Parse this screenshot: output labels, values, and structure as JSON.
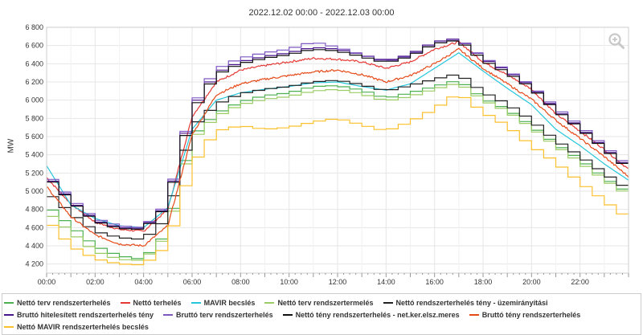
{
  "chart_data": {
    "type": "line",
    "title": "2022.12.02 00:00 - 2022.12.03 00:00",
    "ylabel": "MW",
    "xlabel": "",
    "ylim": [
      4100,
      6800
    ],
    "xlim": [
      0,
      24
    ],
    "grid": true,
    "legend_position": "bottom",
    "y_ticks": [
      {
        "value": 4200,
        "label": "4 200"
      },
      {
        "value": 4400,
        "label": "4 400"
      },
      {
        "value": 4600,
        "label": "4 600"
      },
      {
        "value": 4800,
        "label": "4 800"
      },
      {
        "value": 5000,
        "label": "5 000"
      },
      {
        "value": 5200,
        "label": "5 200"
      },
      {
        "value": 5400,
        "label": "5 400"
      },
      {
        "value": 5600,
        "label": "5 600"
      },
      {
        "value": 5800,
        "label": "5 800"
      },
      {
        "value": 6000,
        "label": "6 000"
      },
      {
        "value": 6200,
        "label": "6 200"
      },
      {
        "value": 6400,
        "label": "6 400"
      },
      {
        "value": 6600,
        "label": "6 600"
      },
      {
        "value": 6800,
        "label": "6 800"
      }
    ],
    "x_ticks": [
      {
        "value": 0,
        "label": "00:00"
      },
      {
        "value": 2,
        "label": "02:00"
      },
      {
        "value": 4,
        "label": "04:00"
      },
      {
        "value": 6,
        "label": "06:00"
      },
      {
        "value": 8,
        "label": "08:00"
      },
      {
        "value": 10,
        "label": "10:00"
      },
      {
        "value": 12,
        "label": "12:00"
      },
      {
        "value": 14,
        "label": "14:00"
      },
      {
        "value": 16,
        "label": "16:00"
      },
      {
        "value": 18,
        "label": "18:00"
      },
      {
        "value": 20,
        "label": "20:00"
      },
      {
        "value": 22,
        "label": "22:00"
      }
    ],
    "x": [
      0,
      1,
      2,
      3,
      4,
      5,
      6,
      7,
      8,
      9,
      10,
      11,
      12,
      13,
      14,
      15,
      16,
      17,
      18,
      19,
      20,
      21,
      22,
      23,
      24
    ],
    "series": [
      {
        "name": "Nettó terv rendszerterhelés",
        "color": "#4caf50",
        "style": "step",
        "values": [
          4850,
          4620,
          4400,
          4290,
          4250,
          4550,
          5600,
          5850,
          5980,
          6050,
          6080,
          6150,
          6160,
          6110,
          6020,
          6080,
          6150,
          6220,
          6020,
          5900,
          5720,
          5520,
          5350,
          5150,
          4980
        ]
      },
      {
        "name": "Nettó terhelés",
        "color": "#e53935",
        "style": "noisy",
        "values": [
          5150,
          4860,
          4660,
          4580,
          4560,
          4800,
          5820,
          6200,
          6330,
          6380,
          6420,
          6460,
          6450,
          6420,
          6350,
          6420,
          6560,
          6640,
          6420,
          6280,
          6120,
          5850,
          5660,
          5460,
          5240
        ]
      },
      {
        "name": "MAVIR becslés",
        "color": "#26c6da",
        "style": "smooth",
        "values": [
          5280,
          4850,
          4700,
          4620,
          4600,
          4820,
          5680,
          6000,
          6080,
          6120,
          6150,
          6190,
          6200,
          6150,
          6110,
          6180,
          6350,
          6520,
          6320,
          6130,
          5950,
          5680,
          5500,
          5300,
          5120
        ]
      },
      {
        "name": "Nettó terv rendszertermelés",
        "color": "#9ccc65",
        "style": "step",
        "values": [
          4780,
          4550,
          4340,
          4250,
          4240,
          4520,
          5560,
          5820,
          5950,
          6010,
          6040,
          6100,
          6120,
          6070,
          5990,
          6040,
          6120,
          6190,
          6000,
          5880,
          5700,
          5500,
          5320,
          5130,
          4960
        ]
      },
      {
        "name": "Nettó rendszerterhelés tény - üzemirányítási",
        "color": "#222222",
        "style": "step",
        "values": [
          5000,
          4760,
          4560,
          4490,
          4470,
          4700,
          5700,
          5950,
          6070,
          6120,
          6150,
          6200,
          6220,
          6170,
          6100,
          6160,
          6230,
          6290,
          6090,
          5960,
          5780,
          5560,
          5390,
          5200,
          5020
        ]
      },
      {
        "name": "Bruttó hitelesített rendszerterhelés tény",
        "color": "#4a148c",
        "style": "step",
        "values": [
          5180,
          4900,
          4680,
          4600,
          4590,
          4850,
          5900,
          6300,
          6420,
          6480,
          6520,
          6580,
          6560,
          6500,
          6430,
          6500,
          6640,
          6680,
          6460,
          6320,
          6150,
          5900,
          5700,
          5480,
          5260
        ]
      },
      {
        "name": "Bruttó terv rendszerterhelés",
        "color": "#7e57c2",
        "style": "step",
        "values": [
          5200,
          4920,
          4700,
          4620,
          4600,
          4870,
          5920,
          6340,
          6460,
          6520,
          6560,
          6640,
          6580,
          6500,
          6420,
          6490,
          6620,
          6670,
          6470,
          6330,
          6160,
          5920,
          5720,
          5500,
          5280
        ]
      },
      {
        "name": "Nettó tény rendszerterhelés - net.ker.elsz.meres",
        "color": "#111111",
        "style": "step",
        "values": [
          5170,
          4890,
          4670,
          4590,
          4580,
          4840,
          5870,
          6280,
          6400,
          6460,
          6500,
          6560,
          6540,
          6480,
          6410,
          6480,
          6620,
          6660,
          6440,
          6300,
          6140,
          5890,
          5690,
          5470,
          5250
        ]
      },
      {
        "name": "Bruttó tény rendszerterhelés",
        "color": "#e64a19",
        "style": "noisy",
        "values": [
          5050,
          4720,
          4520,
          4420,
          4400,
          4620,
          5620,
          6060,
          6180,
          6230,
          6270,
          6310,
          6330,
          6280,
          6200,
          6270,
          6400,
          6560,
          6350,
          6180,
          6010,
          5780,
          5580,
          5380,
          5160
        ]
      },
      {
        "name": "Nettó MAVIR rendszerterhelés becslés",
        "color": "#fbc02d",
        "style": "step",
        "values": [
          4700,
          4400,
          4260,
          4200,
          4190,
          4400,
          5280,
          5660,
          5720,
          5680,
          5700,
          5760,
          5800,
          5730,
          5660,
          5760,
          5900,
          6080,
          5870,
          5720,
          5500,
          5320,
          5100,
          4900,
          4700
        ]
      }
    ]
  },
  "toolbar": {
    "zoom_icon": "zoom-in-icon"
  }
}
